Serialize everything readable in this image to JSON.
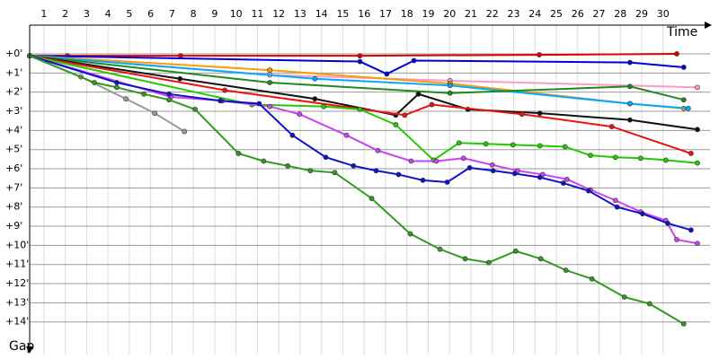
{
  "chart_data": {
    "type": "line",
    "x_label": "Time",
    "y_label": "Gap",
    "xlim": [
      0.33,
      32.2
    ],
    "ylim": [
      -1.5,
      15.7
    ],
    "invert_y": true,
    "grid": true,
    "xticks": [
      1,
      2,
      3,
      4,
      5,
      6,
      7,
      8,
      9,
      10,
      11,
      12,
      13,
      14,
      15,
      16,
      17,
      18,
      19,
      20,
      21,
      22,
      23,
      24,
      25,
      26,
      27,
      28,
      29,
      30
    ],
    "yticks": [
      {
        "value": 0,
        "label": "+0'"
      },
      {
        "value": 1,
        "label": "+1'"
      },
      {
        "value": 2,
        "label": "+2'"
      },
      {
        "value": 3,
        "label": "+3'"
      },
      {
        "value": 4,
        "label": "+4'"
      },
      {
        "value": 5,
        "label": "+5'"
      },
      {
        "value": 6,
        "label": "+6'"
      },
      {
        "value": 7,
        "label": "+7'"
      },
      {
        "value": 8,
        "label": "+8'"
      },
      {
        "value": 9,
        "label": "+9'"
      },
      {
        "value": 10,
        "label": "+10'"
      },
      {
        "value": 11,
        "label": "+11'"
      },
      {
        "value": 12,
        "label": "+12'"
      },
      {
        "value": 13,
        "label": "+13'"
      },
      {
        "value": 14,
        "label": "+14'"
      }
    ],
    "series": [
      {
        "color": "#e00000",
        "x": [
          0.33,
          2.1,
          7.4,
          15.8,
          24.2,
          30.64
        ],
        "values": [
          0.1,
          0.1,
          0.1,
          0.1,
          0.05,
          0.0
        ]
      },
      {
        "color": "#0000dd",
        "x": [
          0.33,
          15.8,
          17.06,
          18.33,
          28.45,
          30.97
        ],
        "values": [
          0.1,
          0.4,
          1.05,
          0.35,
          0.45,
          0.7
        ]
      },
      {
        "color": "#ff99cc",
        "x": [
          0.33,
          11.58,
          20.02,
          31.61
        ],
        "values": [
          0.1,
          1.1,
          1.4,
          1.75
        ]
      },
      {
        "color": "#ff9900",
        "x": [
          0.33,
          11.58,
          20.02,
          28.45,
          30.97
        ],
        "values": [
          0.1,
          0.85,
          1.55,
          2.6,
          2.85
        ]
      },
      {
        "color": "#00aaff",
        "x": [
          0.33,
          13.69,
          20.02,
          28.45,
          31.18
        ],
        "values": [
          0.1,
          1.3,
          1.65,
          2.6,
          2.85
        ]
      },
      {
        "color": "#228822",
        "x": [
          0.33,
          11.58,
          20.02,
          28.45,
          30.97
        ],
        "values": [
          0.1,
          1.5,
          2.05,
          1.7,
          2.4
        ]
      },
      {
        "color": "#111111",
        "x": [
          0.33,
          7.37,
          13.69,
          17.48,
          18.54,
          20.86,
          24.23,
          28.45,
          31.61
        ],
        "values": [
          0.1,
          1.3,
          2.35,
          3.2,
          2.1,
          2.9,
          3.1,
          3.45,
          3.95
        ]
      },
      {
        "color": "#ee1111",
        "x": [
          0.33,
          9.47,
          17.9,
          19.17,
          23.39,
          27.6,
          31.31
        ],
        "values": [
          0.1,
          1.9,
          3.2,
          2.65,
          3.15,
          3.8,
          5.2
        ]
      },
      {
        "color": "#999999",
        "x": [
          0.33,
          2.73,
          4.84,
          6.19,
          7.58
        ],
        "values": [
          0.1,
          1.2,
          2.35,
          3.1,
          4.05
        ]
      },
      {
        "color": "#22cc00",
        "x": [
          0.33,
          10.74,
          14.11,
          15.8,
          17.48,
          19.25,
          20.44,
          21.7,
          22.97,
          24.23,
          25.41,
          26.6,
          27.77,
          28.95,
          30.13,
          31.61
        ],
        "values": [
          0.1,
          2.65,
          2.75,
          2.9,
          3.7,
          5.55,
          4.65,
          4.7,
          4.75,
          4.8,
          4.85,
          5.3,
          5.4,
          5.45,
          5.55,
          5.7
        ]
      },
      {
        "color": "#cc44ee",
        "x": [
          0.33,
          6.94,
          9.35,
          11.58,
          12.97,
          15.17,
          16.64,
          18.2,
          19.38,
          20.65,
          22.0,
          23.18,
          24.36,
          25.5,
          26.6,
          27.77,
          28.95,
          30.13,
          30.64,
          31.61
        ],
        "values": [
          0.1,
          2.25,
          2.45,
          2.75,
          3.15,
          4.25,
          5.05,
          5.6,
          5.6,
          5.45,
          5.8,
          6.1,
          6.3,
          6.55,
          7.1,
          7.65,
          8.25,
          8.7,
          9.7,
          9.9
        ]
      },
      {
        "color": "#1111cc",
        "x": [
          0.33,
          4.41,
          6.86,
          9.26,
          11.08,
          12.64,
          14.2,
          15.5,
          16.56,
          17.61,
          18.75,
          19.89,
          20.94,
          22.04,
          23.05,
          24.23,
          25.33,
          26.51,
          27.85,
          29.04,
          30.22,
          31.31
        ],
        "values": [
          0.1,
          1.5,
          2.1,
          2.45,
          2.6,
          4.25,
          5.4,
          5.85,
          6.1,
          6.3,
          6.6,
          6.7,
          5.95,
          6.1,
          6.25,
          6.45,
          6.75,
          7.15,
          8.0,
          8.35,
          8.85,
          9.2
        ]
      },
      {
        "color": "#339922",
        "x": [
          0.33,
          3.36,
          4.41,
          5.68,
          6.86,
          8.08,
          10.11,
          11.29,
          12.42,
          13.48,
          14.62,
          16.35,
          18.16,
          19.55,
          20.73,
          21.83,
          23.1,
          24.27,
          25.45,
          26.67,
          28.19,
          29.37,
          30.97
        ],
        "values": [
          0.1,
          1.5,
          1.75,
          2.1,
          2.4,
          2.9,
          5.2,
          5.6,
          5.85,
          6.1,
          6.2,
          7.55,
          9.4,
          10.2,
          10.7,
          10.9,
          10.3,
          10.7,
          11.3,
          11.75,
          12.7,
          13.05,
          14.1
        ]
      }
    ]
  }
}
